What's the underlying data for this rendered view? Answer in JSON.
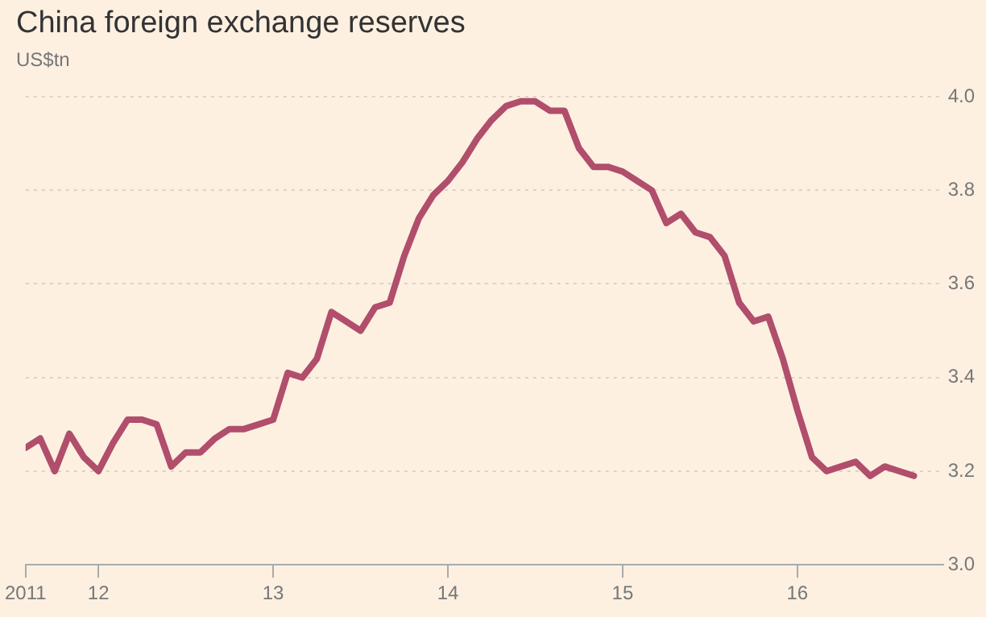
{
  "chart_data": {
    "type": "line",
    "title": "China foreign exchange reserves",
    "subtitle": "US$tn",
    "x": [
      "2011-08",
      "2011-09",
      "2011-10",
      "2011-11",
      "2011-12",
      "2012-01",
      "2012-02",
      "2012-03",
      "2012-04",
      "2012-05",
      "2012-06",
      "2012-07",
      "2012-08",
      "2012-09",
      "2012-10",
      "2012-11",
      "2012-12",
      "2013-01",
      "2013-02",
      "2013-03",
      "2013-04",
      "2013-05",
      "2013-06",
      "2013-07",
      "2013-08",
      "2013-09",
      "2013-10",
      "2013-11",
      "2013-12",
      "2014-01",
      "2014-02",
      "2014-03",
      "2014-04",
      "2014-05",
      "2014-06",
      "2014-07",
      "2014-08",
      "2014-09",
      "2014-10",
      "2014-11",
      "2014-12",
      "2015-01",
      "2015-02",
      "2015-03",
      "2015-04",
      "2015-05",
      "2015-06",
      "2015-07",
      "2015-08",
      "2015-09",
      "2015-10",
      "2015-11",
      "2015-12",
      "2016-01",
      "2016-02",
      "2016-03",
      "2016-04",
      "2016-05",
      "2016-06",
      "2016-07",
      "2016-08",
      "2016-09"
    ],
    "series": [
      {
        "color": "#b04e6c",
        "values": [
          3.25,
          3.27,
          3.2,
          3.28,
          3.23,
          3.2,
          3.26,
          3.31,
          3.31,
          3.3,
          3.21,
          3.24,
          3.24,
          3.27,
          3.29,
          3.29,
          3.3,
          3.31,
          3.41,
          3.4,
          3.44,
          3.54,
          3.52,
          3.5,
          3.55,
          3.56,
          3.66,
          3.74,
          3.79,
          3.82,
          3.86,
          3.91,
          3.95,
          3.98,
          3.99,
          3.99,
          3.97,
          3.97,
          3.89,
          3.85,
          3.85,
          3.84,
          3.82,
          3.8,
          3.73,
          3.75,
          3.71,
          3.7,
          3.66,
          3.56,
          3.52,
          3.53,
          3.44,
          3.33,
          3.23,
          3.2,
          3.21,
          3.22,
          3.19,
          3.21,
          3.2,
          3.19
        ]
      }
    ],
    "xlim": [
      "2011-08",
      "2016-11"
    ],
    "xticks": [
      {
        "value": "2011-08",
        "label": "2011"
      },
      {
        "value": "2012-01",
        "label": "12"
      },
      {
        "value": "2013-01",
        "label": "13"
      },
      {
        "value": "2014-01",
        "label": "14"
      },
      {
        "value": "2015-01",
        "label": "15"
      },
      {
        "value": "2016-01",
        "label": "16"
      }
    ],
    "ylim": [
      3.0,
      4.0
    ],
    "yticks": [
      {
        "value": 3.0,
        "label": "3.0"
      },
      {
        "value": 3.2,
        "label": "3.2"
      },
      {
        "value": 3.4,
        "label": "3.4"
      },
      {
        "value": 3.6,
        "label": "3.6"
      },
      {
        "value": 3.8,
        "label": "3.8"
      },
      {
        "value": 4.0,
        "label": "4.0"
      }
    ],
    "grid": "y",
    "legend": false,
    "marker": "none",
    "line_style": "solid"
  }
}
